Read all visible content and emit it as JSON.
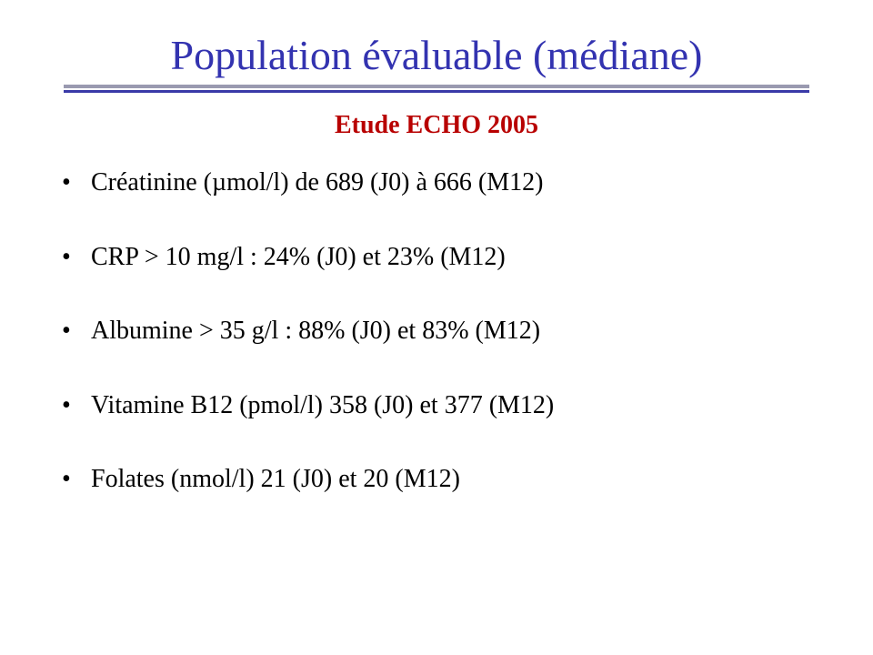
{
  "title": "Population évaluable (médiane)",
  "subtitle": "Etude ECHO 2005",
  "colors": {
    "title": "#3333b0",
    "subtitle": "#b80000",
    "rule_shadow": "#9a9ab0",
    "rule_line": "#3a3aa8",
    "text": "#000000",
    "background": "#ffffff"
  },
  "typography": {
    "title_fontsize": 46,
    "subtitle_fontsize": 28,
    "bullet_fontsize": 28,
    "font_family": "Times New Roman"
  },
  "bullets": [
    "Créatinine (µmol/l) de 689 (J0) à 666 (M12)",
    "CRP > 10 mg/l : 24% (J0) et 23% (M12)",
    "Albumine > 35 g/l : 88% (J0) et 83% (M12)",
    "Vitamine B12 (pmol/l) 358 (J0) et 377 (M12)",
    "Folates (nmol/l) 21 (J0) et 20 (M12)"
  ]
}
